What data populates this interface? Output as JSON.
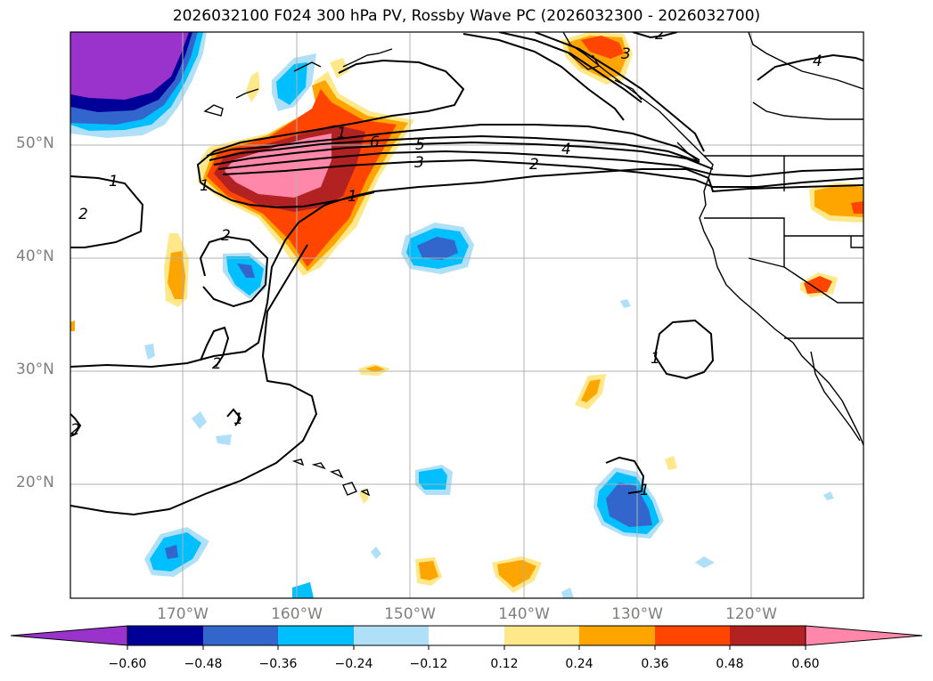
{
  "title": "2026032100 F024 300 hPa PV, Rossby Wave PC (2026032300 - 2026032700)",
  "latitude_labels": [
    "50°N",
    "40°N",
    "30°N",
    "20°N"
  ],
  "longitude_labels": [
    "170°W",
    "160°W",
    "150°W",
    "140°W",
    "130°W",
    "120°W"
  ],
  "contour_labels": [
    "1",
    "2",
    "3",
    "4",
    "5",
    "6",
    "1",
    "2",
    "2",
    "2",
    "1",
    "1",
    "2",
    "4",
    "3",
    "2",
    "1",
    "1",
    "1"
  ],
  "colorbar": {
    "tick_labels": [
      "−0.60",
      "−0.48",
      "−0.36",
      "−0.24",
      "−0.12",
      "0.12",
      "0.24",
      "0.36",
      "0.48",
      "0.60"
    ],
    "colors": [
      "#9933cc",
      "#000099",
      "#3366cc",
      "#00bfff",
      "#b0e0f8",
      "#ffffff",
      "#ffe88a",
      "#ffa500",
      "#ff4500",
      "#b22222",
      "#ff88aa",
      "#ff88aa"
    ]
  },
  "colors": {
    "gridline": "#b0b0b0",
    "contour": "#000000",
    "coastline": "#000000",
    "label": "#7f7f7f"
  }
}
